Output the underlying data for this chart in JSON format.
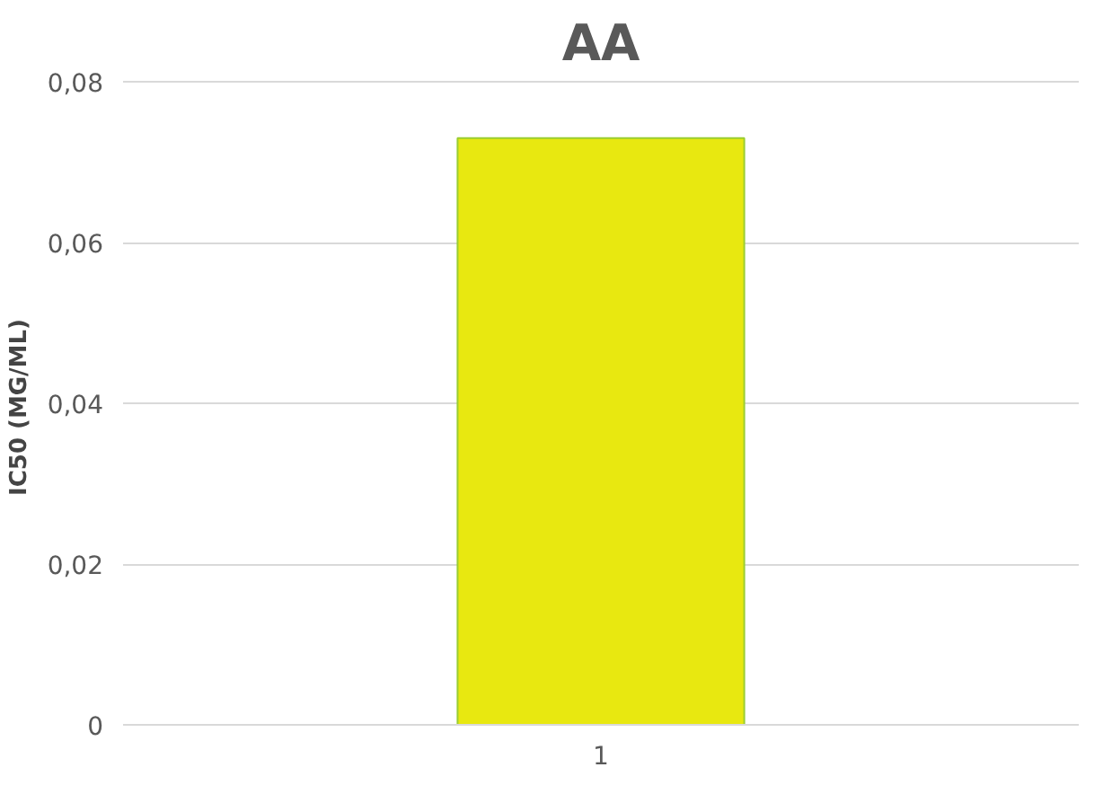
{
  "chart_data": {
    "type": "bar",
    "title": "AA",
    "ylabel": "IC50  (MG/ML)",
    "categories": [
      "1"
    ],
    "values": [
      0.073
    ],
    "color": "#e8e810",
    "ylim": [
      0,
      0.08
    ],
    "yticks": [
      0,
      {
        "value": 0.02,
        "label": "0,02"
      },
      {
        "value": 0.04,
        "label": "0,04"
      },
      {
        "value": 0.06,
        "label": "0,06"
      },
      {
        "value": 0.08,
        "label": "0,08"
      }
    ],
    "grid": "y"
  }
}
